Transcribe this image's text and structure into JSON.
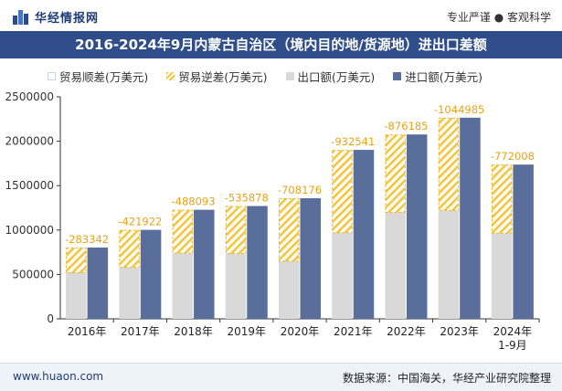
{
  "header": {
    "brand": "华经情报网",
    "slogan": "专业严谨 ● 客观科学"
  },
  "footer": {
    "url": "www.huaon.com",
    "source": "数据来源：中国海关，华经产业研究院整理"
  },
  "chart_data": {
    "type": "bar",
    "title": "2016-2024年9月内蒙古自治区（境内目的地/货源地）进出口差额",
    "categories": [
      "2016年",
      "2017年",
      "2018年",
      "2019年",
      "2020年",
      "2021年",
      "2022年",
      "2023年",
      "2024年\n1-9月"
    ],
    "series": [
      {
        "name": "贸易顺差(万美元)",
        "values": [
          0,
          0,
          0,
          0,
          0,
          0,
          0,
          0,
          0
        ]
      },
      {
        "name": "贸易逆差(万美元)",
        "values": [
          -283342,
          -421922,
          -488093,
          -535878,
          -708176,
          -932541,
          -876185,
          -1044985,
          -772008
        ]
      },
      {
        "name": "出口额(万美元)",
        "values": [
          520000,
          580000,
          740000,
          735000,
          650000,
          970000,
          1200000,
          1220000,
          965000
        ]
      },
      {
        "name": "进口额(万美元)",
        "values": [
          803342,
          1001922,
          1228093,
          1270878,
          1358176,
          1902541,
          2076185,
          2264985,
          1737008
        ]
      }
    ],
    "data_labels": [
      "-283342",
      "-421922",
      "-488093",
      "-535878",
      "-708176",
      "-932541",
      "-876185",
      "-1044985",
      "-772008"
    ],
    "ylim": [
      0,
      2500000
    ],
    "yticks": [
      0,
      500000,
      1000000,
      1500000,
      2000000,
      2500000
    ],
    "ytick_labels": [
      "0",
      "500000",
      "1000000",
      "1500000",
      "2000000",
      "2500000"
    ],
    "xlabel": "",
    "ylabel": "",
    "legend": "top",
    "grid": false,
    "colors": {
      "export": "#d9d9d9",
      "import": "#596e9b",
      "deficit_stripe": "#f5c23a",
      "deficit_border": "#f0b429",
      "label": "#e8a317",
      "surplus": "#ffffff"
    }
  }
}
